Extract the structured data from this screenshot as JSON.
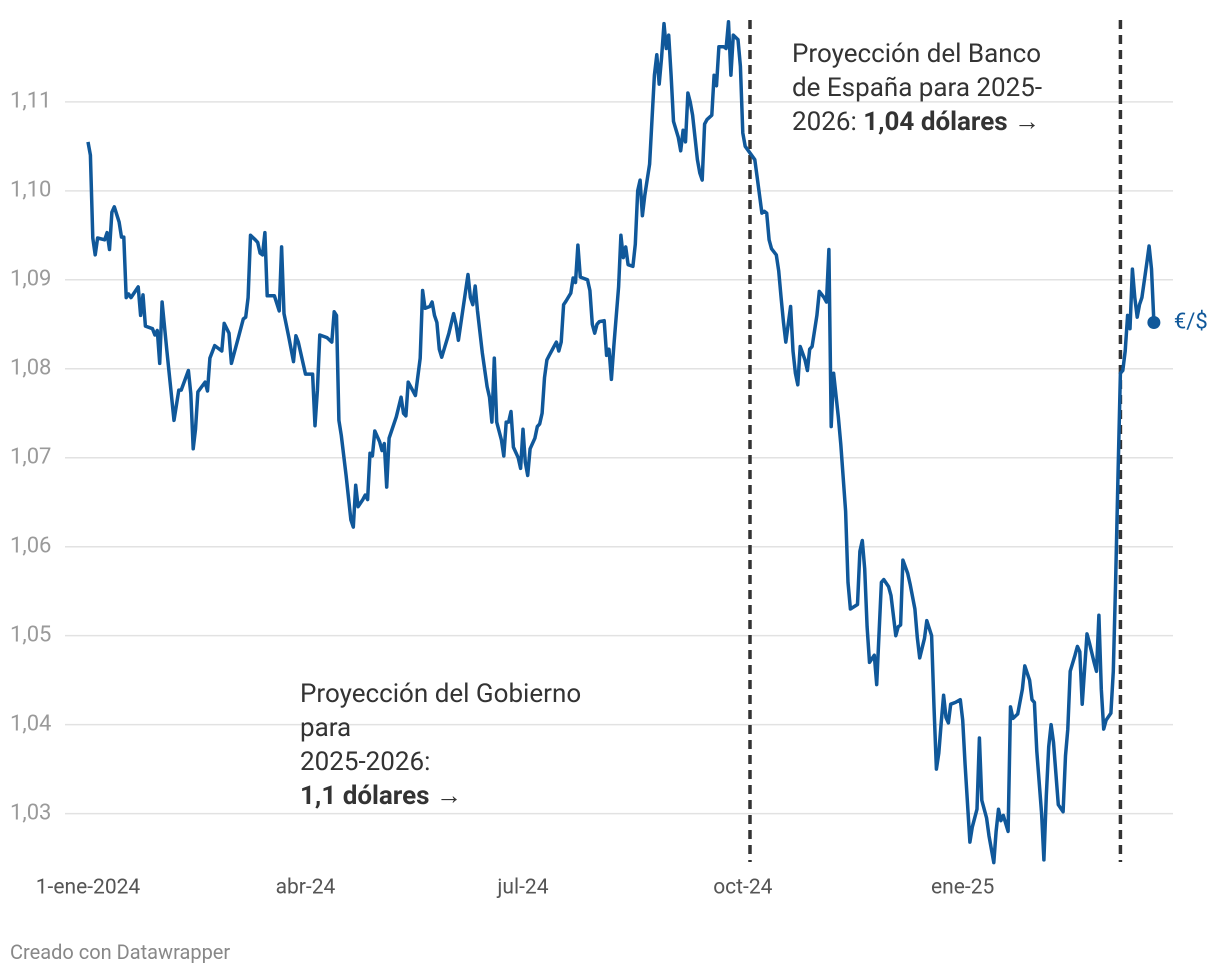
{
  "chart_data": {
    "type": "line",
    "series": [
      {
        "name": "€/$",
        "color": "#10589a",
        "x": [
          0,
          1,
          2,
          3,
          4,
          7,
          8,
          9,
          10,
          11,
          13,
          14,
          15,
          16,
          17,
          18,
          21,
          22,
          23,
          24,
          27,
          28,
          29,
          30,
          31,
          33,
          36,
          38,
          39,
          42,
          43,
          44,
          45,
          46,
          49,
          50,
          51,
          53,
          56,
          57,
          59,
          60,
          63,
          65,
          66,
          67,
          68,
          70,
          71,
          72,
          73,
          74,
          75,
          78,
          80,
          81,
          82,
          84,
          86,
          87,
          88,
          91,
          94,
          95,
          96,
          97,
          100,
          102,
          103,
          104,
          105,
          106,
          108,
          110,
          111,
          112,
          113,
          115,
          116,
          117,
          118,
          119,
          120,
          122,
          123,
          124,
          125,
          126,
          129,
          131,
          132,
          133,
          134,
          137,
          139,
          140,
          141,
          143,
          144,
          145,
          146,
          147,
          148,
          151,
          153,
          154,
          155,
          159,
          160,
          161,
          162,
          163,
          165,
          167,
          168,
          169,
          170,
          171,
          173,
          174,
          175,
          176,
          177,
          178,
          180,
          181,
          182,
          183,
          184,
          185,
          187,
          188,
          189,
          190,
          191,
          192,
          193,
          195,
          196,
          197,
          198,
          199,
          200,
          202,
          203,
          204,
          205,
          206,
          207,
          209,
          210,
          211,
          212,
          213,
          214,
          216,
          217,
          218,
          219,
          220,
          222,
          223,
          224,
          225,
          226,
          228,
          229,
          230,
          231,
          232,
          233,
          235,
          236,
          237,
          238,
          239,
          240,
          241,
          242,
          243,
          244,
          245,
          247,
          248,
          249,
          250,
          251,
          252,
          253,
          255,
          256,
          257,
          258,
          259,
          261,
          262,
          263,
          264,
          266,
          267,
          268,
          269,
          270,
          272,
          273,
          274,
          275,
          279,
          280,
          282,
          283,
          284,
          285,
          286,
          288,
          289,
          290,
          291,
          292,
          293,
          294,
          295,
          296,
          297,
          298,
          300,
          301,
          302,
          303,
          305,
          306,
          308,
          309,
          310,
          311,
          312,
          314,
          315,
          317,
          318,
          319,
          322,
          323,
          324,
          325,
          326,
          327,
          329,
          330,
          332,
          333,
          335,
          336,
          338,
          339,
          340,
          341,
          343,
          344,
          346,
          347,
          348,
          350,
          351,
          353,
          354,
          355,
          356,
          357,
          358,
          359,
          360,
          361,
          363,
          365,
          366,
          367,
          369,
          370,
          372,
          373,
          374,
          376,
          377,
          379,
          380,
          381,
          382,
          383,
          385,
          386,
          387,
          389,
          391,
          392,
          394,
          395,
          396,
          397,
          399,
          400,
          401,
          402,
          403,
          404,
          405,
          406,
          408,
          409,
          410,
          411,
          413,
          414,
          415,
          416,
          418,
          419,
          421,
          422,
          423,
          424,
          425,
          426,
          428,
          429,
          430,
          431,
          432,
          433,
          434,
          435,
          436,
          437,
          438,
          439,
          440,
          441,
          443,
          444,
          445,
          446
        ],
        "values": [
          1.1055,
          1.104,
          1.0947,
          1.0928,
          1.0947,
          1.0945,
          1.0953,
          1.0934,
          1.0976,
          1.0982,
          1.0965,
          1.0948,
          1.0948,
          1.088,
          1.0884,
          1.088,
          1.0892,
          1.086,
          1.0883,
          1.0848,
          1.0845,
          1.0838,
          1.0843,
          1.0806,
          1.0875,
          1.082,
          1.0742,
          1.0776,
          1.0776,
          1.0798,
          1.0772,
          1.071,
          1.0732,
          1.0774,
          1.0785,
          1.0775,
          1.0812,
          1.0826,
          1.082,
          1.0851,
          1.084,
          1.0806,
          1.0836,
          1.0856,
          1.0858,
          1.088,
          1.095,
          1.0945,
          1.0942,
          1.093,
          1.0928,
          1.0953,
          1.0882,
          1.0882,
          1.0865,
          1.0937,
          1.0862,
          1.0836,
          1.0808,
          1.0837,
          1.083,
          1.0794,
          1.0794,
          1.0736,
          1.0776,
          1.0838,
          1.0835,
          1.083,
          1.0864,
          1.086,
          1.0742,
          1.0725,
          1.068,
          1.063,
          1.0622,
          1.0669,
          1.0645,
          1.0653,
          1.0658,
          1.0653,
          1.0705,
          1.0702,
          1.073,
          1.0718,
          1.0708,
          1.0716,
          1.0667,
          1.0722,
          1.0746,
          1.0768,
          1.075,
          1.0747,
          1.0785,
          1.077,
          1.0812,
          1.0888,
          1.0868,
          1.087,
          1.0875,
          1.086,
          1.0852,
          1.0822,
          1.0813,
          1.084,
          1.0862,
          1.085,
          1.0832,
          1.0906,
          1.088,
          1.0872,
          1.0893,
          1.0865,
          1.0818,
          1.078,
          1.0768,
          1.074,
          1.0812,
          1.074,
          1.072,
          1.0702,
          1.074,
          1.074,
          1.0752,
          1.0712,
          1.07,
          1.0688,
          1.0732,
          1.0695,
          1.068,
          1.071,
          1.0722,
          1.0735,
          1.0738,
          1.075,
          1.079,
          1.081,
          1.0815,
          1.0825,
          1.083,
          1.082,
          1.083,
          1.0872,
          1.0876,
          1.0885,
          1.0902,
          1.0897,
          1.0939,
          1.0903,
          1.0902,
          1.09,
          1.0888,
          1.085,
          1.084,
          1.085,
          1.0853,
          1.0854,
          1.0815,
          1.0822,
          1.0788,
          1.0825,
          1.0892,
          1.095,
          1.0925,
          1.0937,
          1.0917,
          1.0915,
          1.094,
          1.1,
          1.1012,
          1.0972,
          1.0995,
          1.103,
          1.108,
          1.113,
          1.1153,
          1.112,
          1.115,
          1.1188,
          1.116,
          1.1175,
          1.113,
          1.1078,
          1.106,
          1.1045,
          1.1068,
          1.1055,
          1.111,
          1.11,
          1.1085,
          1.1035,
          1.102,
          1.1012,
          1.1075,
          1.108,
          1.1085,
          1.113,
          1.1118,
          1.1162,
          1.1162,
          1.116,
          1.119,
          1.113,
          1.1175,
          1.117,
          1.114,
          1.1065,
          1.105,
          1.1035,
          1.1015,
          1.0975,
          1.0977,
          1.0975,
          1.0945,
          1.0935,
          1.0928,
          1.091,
          1.088,
          1.0852,
          1.083,
          1.085,
          1.087,
          1.082,
          1.0795,
          1.0782,
          1.0825,
          1.081,
          1.0798,
          1.0822,
          1.0825,
          1.086,
          1.0887,
          1.088,
          1.0875,
          1.0934,
          1.0735,
          1.0795,
          1.0745,
          1.0715,
          1.064,
          1.056,
          1.053,
          1.0535,
          1.0595,
          1.0607,
          1.0575,
          1.051,
          1.047,
          1.0478,
          1.0445,
          1.056,
          1.0563,
          1.0555,
          1.0545,
          1.05,
          1.051,
          1.0512,
          1.0585,
          1.057,
          1.0558,
          1.053,
          1.0498,
          1.0475,
          1.0497,
          1.0517,
          1.05,
          1.042,
          1.035,
          1.0368,
          1.0402,
          1.0433,
          1.0408,
          1.0402,
          1.0423,
          1.0425,
          1.0428,
          1.0405,
          1.0355,
          1.0268,
          1.0285,
          1.0305,
          1.0385,
          1.0315,
          1.0295,
          1.0275,
          1.0245,
          1.028,
          1.0305,
          1.0292,
          1.0298,
          1.028,
          1.042,
          1.0407,
          1.0412,
          1.044,
          1.0466,
          1.045,
          1.0428,
          1.0425,
          1.037,
          1.03,
          1.0248,
          1.032,
          1.0375,
          1.04,
          1.038,
          1.0345,
          1.031,
          1.0302,
          1.0365,
          1.0395,
          1.046,
          1.0478,
          1.0488,
          1.0482,
          1.0423,
          1.0502,
          1.0492,
          1.047,
          1.046,
          1.0523,
          1.044,
          1.0395,
          1.0405,
          1.0413,
          1.046,
          1.056,
          1.068,
          1.0795,
          1.0798,
          1.082,
          1.086,
          1.0845,
          1.0912,
          1.088,
          1.0858,
          1.0872,
          1.088,
          1.0918,
          1.0938,
          1.0912,
          1.0852
        ]
      }
    ],
    "xlim": [
      0,
      454
    ],
    "xticks": [
      {
        "value": 0,
        "label": "1-ene-2024"
      },
      {
        "value": 91,
        "label": "abr-24"
      },
      {
        "value": 182,
        "label": "jul-24"
      },
      {
        "value": 274,
        "label": "oct-24"
      },
      {
        "value": 366,
        "label": "ene-25"
      }
    ],
    "ylim": [
      1.024,
      1.1192
    ],
    "yticks": [
      {
        "value": 1.03,
        "label": "1,03"
      },
      {
        "value": 1.04,
        "label": "1,04"
      },
      {
        "value": 1.05,
        "label": "1,05"
      },
      {
        "value": 1.06,
        "label": "1,06"
      },
      {
        "value": 1.07,
        "label": "1,07"
      },
      {
        "value": 1.08,
        "label": "1,08"
      },
      {
        "value": 1.09,
        "label": "1,09"
      },
      {
        "value": 1.1,
        "label": "1,10"
      },
      {
        "value": 1.11,
        "label": "1,11"
      }
    ],
    "grid": true,
    "reference_lines": [
      277,
      432
    ],
    "annotations": [
      {
        "lines": [
          "Proyección del Banco",
          "de España para 2025-",
          "2026:"
        ],
        "bold": "1,04 dólares →"
      },
      {
        "lines": [
          "Proyección del Gobierno",
          "para",
          "2025-2026:"
        ],
        "bold": "1,1 dólares →"
      }
    ],
    "source": "Creado con Datawrapper"
  }
}
